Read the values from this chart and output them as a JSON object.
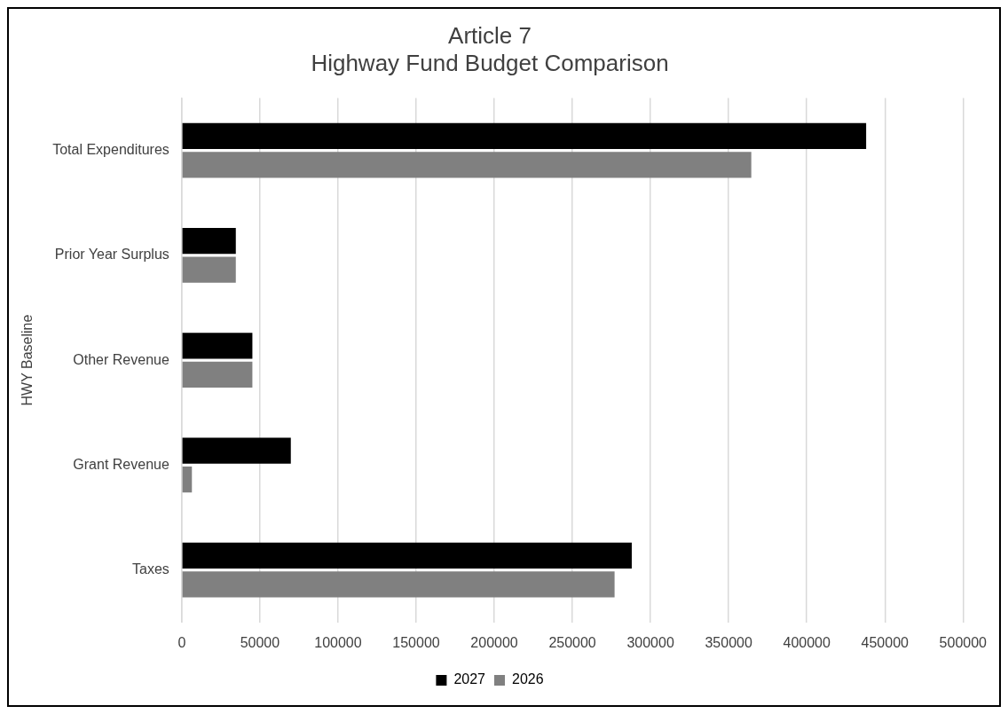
{
  "chart_data": {
    "type": "bar",
    "orientation": "horizontal",
    "title": "Article 7\nHighway Fund Budget Comparison",
    "ylabel": "HWY Baseline",
    "categories": [
      "Total Expenditures",
      "Prior Year Surplus",
      "Other Revenue",
      "Grant Revenue",
      "Taxes"
    ],
    "series": [
      {
        "name": "2027",
        "color": "#000000",
        "values": [
          438000,
          34600,
          45200,
          69800,
          288000
        ]
      },
      {
        "name": "2026",
        "color": "#808080",
        "values": [
          364500,
          34600,
          45200,
          6500,
          277000
        ]
      }
    ],
    "xlim": [
      0,
      500000
    ],
    "xticks": [
      0,
      50000,
      100000,
      150000,
      200000,
      250000,
      300000,
      350000,
      400000,
      450000,
      500000
    ],
    "grid": "x",
    "legend": "bottom"
  }
}
